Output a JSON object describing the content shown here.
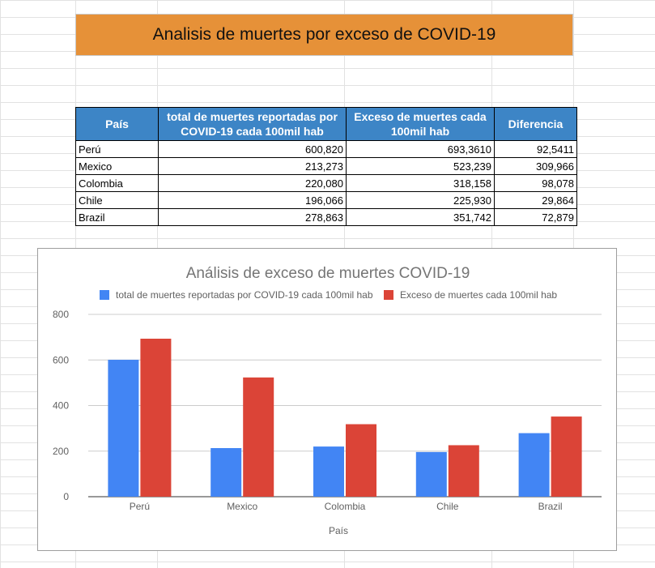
{
  "banner": {
    "title": "Analisis de muertes por exceso de COVID-19"
  },
  "table": {
    "headers": {
      "country": "País",
      "reported": [
        "total de muertes reportadas por",
        "COVID-19 cada 100mil hab"
      ],
      "excess": [
        "Exceso de muertes cada",
        "100mil hab"
      ],
      "difference": "Diferencia"
    },
    "rows": [
      {
        "country": "Perú",
        "reported": "600,820",
        "excess": "693,3610",
        "difference": "92,5411"
      },
      {
        "country": "Mexico",
        "reported": "213,273",
        "excess": "523,239",
        "difference": "309,966"
      },
      {
        "country": "Colombia",
        "reported": "220,080",
        "excess": "318,158",
        "difference": "98,078"
      },
      {
        "country": "Chile",
        "reported": "196,066",
        "excess": "225,930",
        "difference": "29,864"
      },
      {
        "country": "Brazil",
        "reported": "278,863",
        "excess": "351,742",
        "difference": "72,879"
      }
    ]
  },
  "chart_data": {
    "type": "bar",
    "title": "Análisis de exceso de muertes COVID-19",
    "xlabel": "País",
    "ylabel": "",
    "categories": [
      "Perú",
      "Mexico",
      "Colombia",
      "Chile",
      "Brazil"
    ],
    "series": [
      {
        "name": "total de muertes reportadas por COVID-19 cada 100mil hab",
        "color": "#4285f4",
        "values": [
          600.82,
          213.273,
          220.08,
          196.066,
          278.863
        ]
      },
      {
        "name": "Exceso de muertes cada 100mil hab",
        "color": "#db4437",
        "values": [
          693.361,
          523.239,
          318.158,
          225.93,
          351.742
        ]
      }
    ],
    "ylim": [
      0,
      800
    ],
    "yticks": [
      0,
      200,
      400,
      600,
      800
    ],
    "grid": true,
    "legend": "top"
  }
}
